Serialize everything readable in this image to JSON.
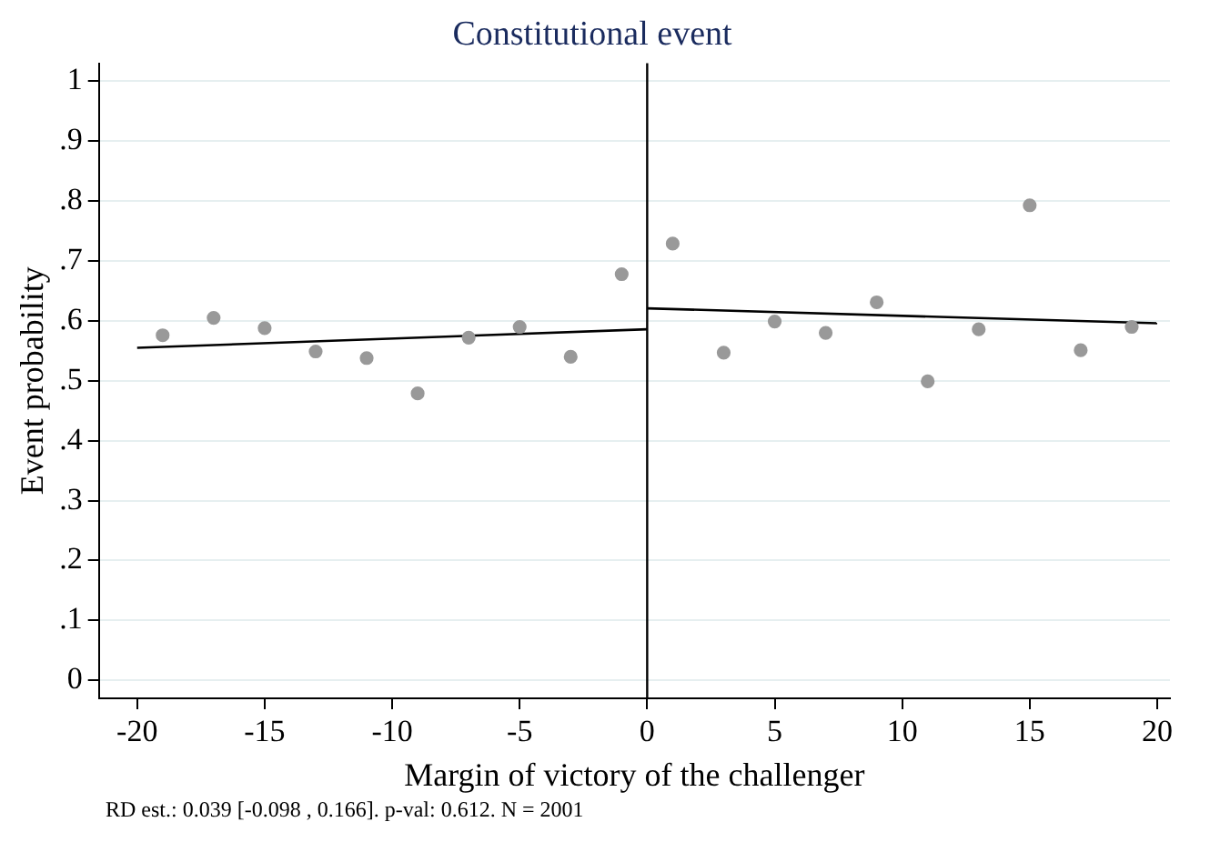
{
  "chart_data": {
    "type": "scatter",
    "title": "Constitutional event",
    "xlabel": "Margin of victory of the challenger",
    "ylabel": "Event probability",
    "annotations": [
      "RD est.: 0.039 [-0.098 , 0.166]. p-val: 0.612. N = 2001"
    ],
    "xlim": [
      -21.5,
      20.5
    ],
    "xticks": [
      -20,
      -15,
      -10,
      -5,
      0,
      5,
      10,
      15,
      20
    ],
    "ylim": [
      -0.03,
      1.03
    ],
    "yticks": [
      {
        "value": 0,
        "label": "0"
      },
      {
        "value": 0.1,
        "label": ".1"
      },
      {
        "value": 0.2,
        "label": ".2"
      },
      {
        "value": 0.3,
        "label": ".3"
      },
      {
        "value": 0.4,
        "label": ".4"
      },
      {
        "value": 0.5,
        "label": ".5"
      },
      {
        "value": 0.6,
        "label": ".6"
      },
      {
        "value": 0.7,
        "label": ".7"
      },
      {
        "value": 0.8,
        "label": ".8"
      },
      {
        "value": 0.9,
        "label": ".9"
      },
      {
        "value": 1,
        "label": "1"
      }
    ],
    "grid": "y",
    "legend": false,
    "marker": "circle",
    "ref_lines": [
      {
        "axis": "x",
        "value": 0,
        "color": "#000000"
      }
    ],
    "series": [
      {
        "type": "scatter",
        "color": "#999999",
        "x": [
          -19,
          -17,
          -15,
          -13,
          -11,
          -9,
          -7,
          -5,
          -3,
          -1
        ],
        "values": [
          0.576,
          0.605,
          0.588,
          0.549,
          0.538,
          0.479,
          0.572,
          0.59,
          0.54,
          0.678
        ]
      },
      {
        "type": "scatter",
        "color": "#999999",
        "x": [
          1,
          3,
          5,
          7,
          9,
          11,
          13,
          15,
          17,
          19
        ],
        "values": [
          0.729,
          0.547,
          0.599,
          0.58,
          0.631,
          0.499,
          0.586,
          0.793,
          0.551,
          0.59
        ]
      },
      {
        "type": "line",
        "color": "#000000",
        "marker": "none",
        "line_style": "solid",
        "x": [
          -20,
          0
        ],
        "values": [
          0.555,
          0.586
        ]
      },
      {
        "type": "line",
        "color": "#000000",
        "marker": "none",
        "line_style": "solid",
        "x": [
          0,
          20
        ],
        "values": [
          0.621,
          0.596
        ]
      }
    ]
  }
}
